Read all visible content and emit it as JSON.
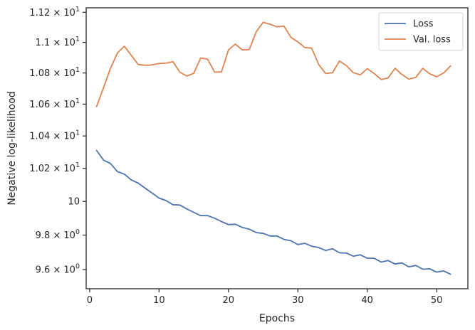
{
  "chart_data": {
    "type": "line",
    "xlabel": "Epochs",
    "ylabel": "Negative log-likelihood",
    "xlim": [
      -0.5,
      54.5
    ],
    "ylim": [
      9.49,
      11.23
    ],
    "yscale": "log",
    "x_ticks": [
      {
        "value": 0,
        "label": "0"
      },
      {
        "value": 10,
        "label": "10"
      },
      {
        "value": 20,
        "label": "20"
      },
      {
        "value": 30,
        "label": "30"
      },
      {
        "value": 40,
        "label": "40"
      },
      {
        "value": 50,
        "label": "50"
      }
    ],
    "y_ticks": [
      {
        "value": 9.6,
        "mant": "9.6",
        "exp": "0"
      },
      {
        "value": 9.8,
        "mant": "9.8",
        "exp": "0"
      },
      {
        "value": 10.0,
        "plain": "10"
      },
      {
        "value": 10.2,
        "mant": "1.02",
        "exp": "1"
      },
      {
        "value": 10.4,
        "mant": "1.04",
        "exp": "1"
      },
      {
        "value": 10.6,
        "mant": "1.06",
        "exp": "1"
      },
      {
        "value": 10.8,
        "mant": "1.08",
        "exp": "1"
      },
      {
        "value": 11.0,
        "mant": "1.1",
        "exp": "1"
      },
      {
        "value": 11.2,
        "mant": "1.12",
        "exp": "1"
      }
    ],
    "legend": "top-right",
    "grid": false,
    "series": [
      {
        "name": "Loss",
        "color": "#4c72b0",
        "x": [
          1,
          2,
          3,
          4,
          5,
          6,
          7,
          8,
          9,
          10,
          11,
          12,
          13,
          14,
          15,
          16,
          17,
          18,
          19,
          20,
          21,
          22,
          23,
          24,
          25,
          26,
          27,
          28,
          29,
          30,
          31,
          32,
          33,
          34,
          35,
          36,
          37,
          38,
          39,
          40,
          41,
          42,
          43,
          44,
          45,
          46,
          47,
          48,
          49,
          50,
          51,
          52
        ],
        "y": [
          10.31,
          10.25,
          10.23,
          10.18,
          10.165,
          10.13,
          10.11,
          10.08,
          10.05,
          10.02,
          10.005,
          9.98,
          9.978,
          9.955,
          9.935,
          9.915,
          9.915,
          9.9,
          9.88,
          9.862,
          9.864,
          9.845,
          9.835,
          9.815,
          9.81,
          9.795,
          9.795,
          9.775,
          9.767,
          9.745,
          9.752,
          9.735,
          9.727,
          9.71,
          9.72,
          9.697,
          9.695,
          9.677,
          9.685,
          9.665,
          9.665,
          9.643,
          9.652,
          9.632,
          9.638,
          9.615,
          9.623,
          9.602,
          9.604,
          9.585,
          9.592,
          9.573
        ]
      },
      {
        "name": "Val. loss",
        "color": "#dd8452",
        "x": [
          1,
          2,
          3,
          4,
          5,
          6,
          7,
          8,
          9,
          10,
          11,
          12,
          13,
          14,
          15,
          16,
          17,
          18,
          19,
          20,
          21,
          22,
          23,
          24,
          25,
          26,
          27,
          28,
          29,
          30,
          31,
          32,
          33,
          34,
          35,
          36,
          37,
          38,
          39,
          40,
          41,
          42,
          43,
          44,
          45,
          46,
          47,
          48,
          49,
          50,
          51,
          52
        ],
        "y": [
          10.585,
          10.705,
          10.83,
          10.93,
          10.975,
          10.915,
          10.855,
          10.85,
          10.852,
          10.862,
          10.864,
          10.873,
          10.805,
          10.78,
          10.798,
          10.897,
          10.89,
          10.805,
          10.807,
          10.95,
          10.988,
          10.95,
          10.953,
          11.07,
          11.133,
          11.12,
          11.103,
          11.108,
          11.033,
          11.003,
          10.966,
          10.962,
          10.855,
          10.797,
          10.802,
          10.878,
          10.847,
          10.802,
          10.788,
          10.828,
          10.797,
          10.758,
          10.768,
          10.83,
          10.79,
          10.76,
          10.772,
          10.83,
          10.795,
          10.775,
          10.8,
          10.845
        ]
      }
    ]
  }
}
